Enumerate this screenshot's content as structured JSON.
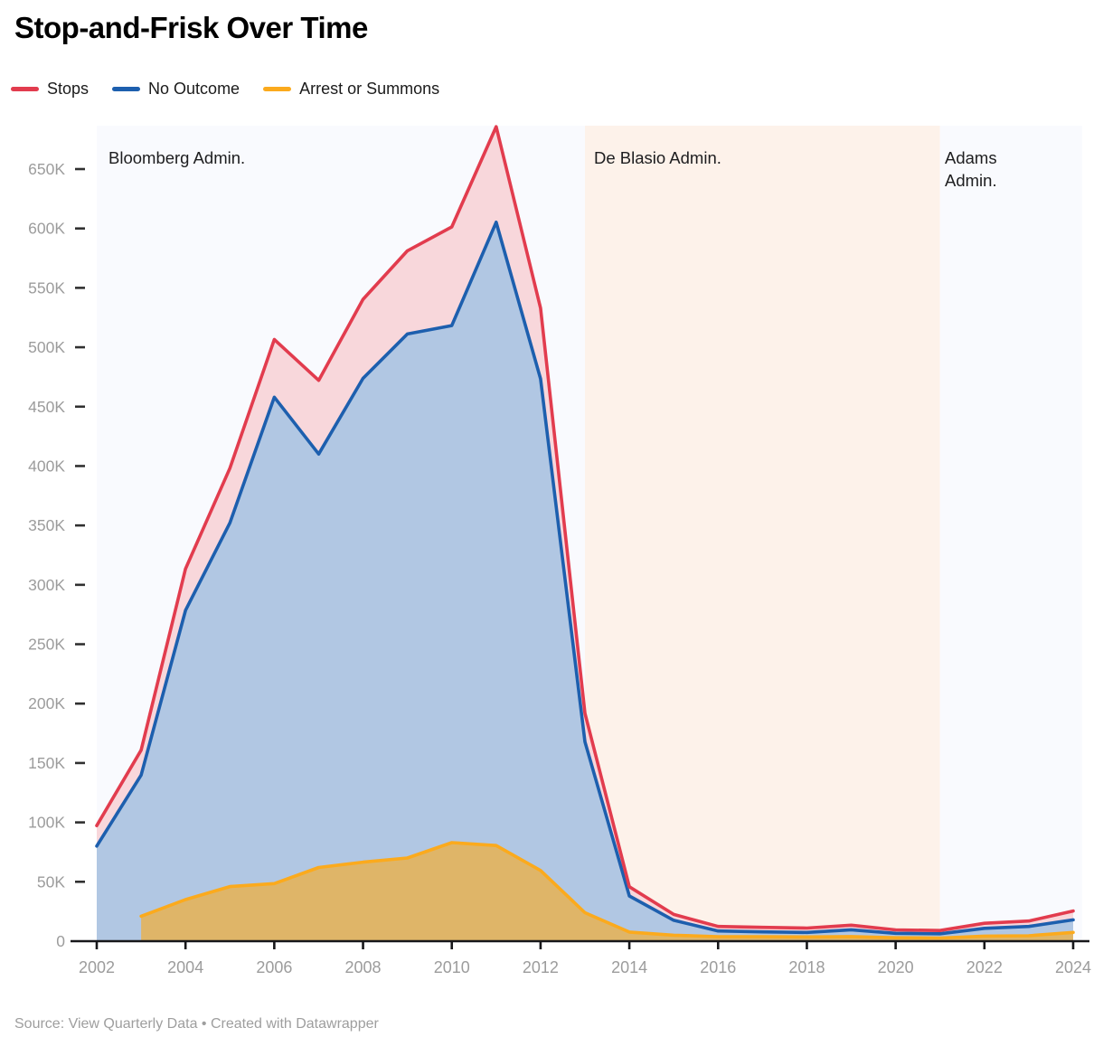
{
  "title": "Stop-and-Frisk Over Time",
  "legend": [
    {
      "label": "Stops",
      "color": "#e23c4e"
    },
    {
      "label": "No Outcome",
      "color": "#1d5fae"
    },
    {
      "label": "Arrest or Summons",
      "color": "#fbaa1d"
    }
  ],
  "footer": {
    "source_prefix": "Source: ",
    "source_link": "View Quarterly Data",
    "credit_suffix": " • Created with Datawrapper"
  },
  "chart_data": {
    "type": "area",
    "title": "Stop-and-Frisk Over Time",
    "xlabel": "",
    "ylabel": "",
    "xlim": [
      2002,
      2024
    ],
    "ylim": [
      0,
      690000
    ],
    "grid": false,
    "legend_position": "top",
    "x": [
      2002,
      2003,
      2004,
      2005,
      2006,
      2007,
      2008,
      2009,
      2010,
      2011,
      2012,
      2013,
      2014,
      2015,
      2016,
      2017,
      2018,
      2019,
      2020,
      2021,
      2022,
      2023,
      2024
    ],
    "series": [
      {
        "name": "Stops",
        "color": "#e23c4e",
        "fill": "#f8d7db",
        "values": [
          97296,
          160851,
          313523,
          398191,
          506491,
          472096,
          540302,
          581168,
          601285,
          685724,
          532911,
          191851,
          45787,
          22563,
          12404,
          11629,
          11008,
          13459,
          9544,
          8947,
          15102,
          16971,
          25386
        ]
      },
      {
        "name": "No Outcome",
        "color": "#1d5fae",
        "fill": "#b1c7e3",
        "values": [
          80054,
          139851,
          278523,
          352191,
          457991,
          410096,
          473802,
          511168,
          518285,
          605224,
          473411,
          167851,
          38087,
          17563,
          8604,
          7829,
          7408,
          9559,
          6644,
          6247,
          10802,
          12371,
          17986
        ]
      },
      {
        "name": "Arrest or Summons",
        "color": "#fbaa1d",
        "fill": "rgba(251,170,29,0.62)",
        "values": [
          null,
          21000,
          35000,
          46000,
          48500,
          62000,
          66500,
          70000,
          83000,
          80500,
          59500,
          24000,
          7700,
          5000,
          3800,
          3800,
          3600,
          3900,
          2900,
          2700,
          4300,
          4600,
          7400
        ]
      }
    ],
    "annotations": [
      {
        "label": "Bloomberg Admin.",
        "from": 2002,
        "to": 2013,
        "background": "#f9fafe"
      },
      {
        "label": "De Blasio Admin.",
        "from": 2013,
        "to": 2021,
        "background": "#fdf2ea"
      },
      {
        "label": "Adams Admin.",
        "from": 2021,
        "to": 2024.2,
        "background": "#f9fafe"
      }
    ],
    "y_ticks": [
      {
        "value": 0,
        "label": "0"
      },
      {
        "value": 50000,
        "label": "50K"
      },
      {
        "value": 100000,
        "label": "100K"
      },
      {
        "value": 150000,
        "label": "150K"
      },
      {
        "value": 200000,
        "label": "200K"
      },
      {
        "value": 250000,
        "label": "250K"
      },
      {
        "value": 300000,
        "label": "300K"
      },
      {
        "value": 350000,
        "label": "350K"
      },
      {
        "value": 400000,
        "label": "400K"
      },
      {
        "value": 450000,
        "label": "450K"
      },
      {
        "value": 500000,
        "label": "500K"
      },
      {
        "value": 550000,
        "label": "550K"
      },
      {
        "value": 600000,
        "label": "600K"
      },
      {
        "value": 650000,
        "label": "650K"
      }
    ],
    "x_ticks": [
      {
        "value": 2002,
        "label": "2002"
      },
      {
        "value": 2004,
        "label": "2004"
      },
      {
        "value": 2006,
        "label": "2006"
      },
      {
        "value": 2008,
        "label": "2008"
      },
      {
        "value": 2010,
        "label": "2010"
      },
      {
        "value": 2012,
        "label": "2012"
      },
      {
        "value": 2014,
        "label": "2014"
      },
      {
        "value": 2016,
        "label": "2016"
      },
      {
        "value": 2018,
        "label": "2018"
      },
      {
        "value": 2020,
        "label": "2020"
      },
      {
        "value": 2022,
        "label": "2022"
      },
      {
        "value": 2024,
        "label": "2024"
      }
    ],
    "colors": {
      "axis": "#17171a",
      "tick_label": "#9c9c9c",
      "annotation_text": "#1d1d1f"
    }
  }
}
